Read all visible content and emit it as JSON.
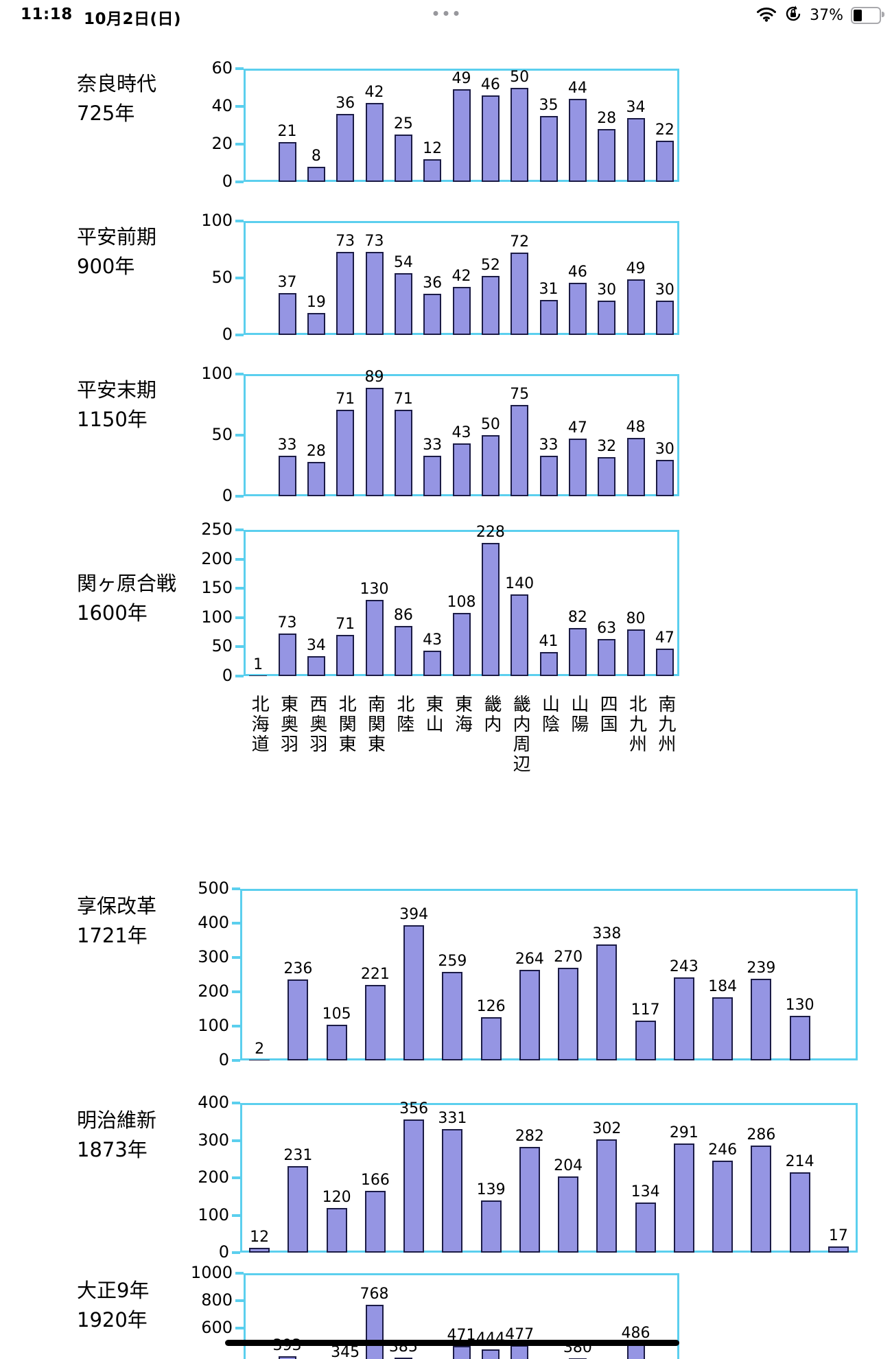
{
  "status_bar": {
    "time": "11:18",
    "date": "10月2日(日)",
    "battery_percent": "37%",
    "icons": [
      "wifi-icon",
      "rotation-lock-icon",
      "battery-icon",
      "multitask-handle-icon"
    ]
  },
  "regions": [
    "北海道",
    "東奥羽",
    "西奥羽",
    "北関東",
    "南関東",
    "北陸",
    "東山",
    "東海",
    "畿内",
    "畿内周辺",
    "山陰",
    "山陽",
    "四国",
    "北九州",
    "南九州"
  ],
  "chart_data": [
    {
      "type": "bar",
      "title": "奈良時代",
      "subtitle": "725年",
      "ylim": [
        0,
        60
      ],
      "yticks": [
        0,
        20,
        40,
        60
      ],
      "categories": [
        "北海道",
        "東奥羽",
        "西奥羽",
        "北関東",
        "南関東",
        "北陸",
        "東山",
        "東海",
        "畿内",
        "畿内周辺",
        "山陰",
        "山陽",
        "四国",
        "北九州",
        "南九州"
      ],
      "values": [
        null,
        21,
        8,
        36,
        42,
        25,
        12,
        49,
        46,
        50,
        35,
        44,
        28,
        34,
        22
      ]
    },
    {
      "type": "bar",
      "title": "平安前期",
      "subtitle": "900年",
      "ylim": [
        0,
        100
      ],
      "yticks": [
        0,
        50,
        100
      ],
      "categories": [
        "北海道",
        "東奥羽",
        "西奥羽",
        "北関東",
        "南関東",
        "北陸",
        "東山",
        "東海",
        "畿内",
        "畿内周辺",
        "山陰",
        "山陽",
        "四国",
        "北九州",
        "南九州"
      ],
      "values": [
        null,
        37,
        19,
        73,
        73,
        54,
        36,
        42,
        52,
        72,
        31,
        46,
        30,
        49,
        30
      ]
    },
    {
      "type": "bar",
      "title": "平安末期",
      "subtitle": "1150年",
      "ylim": [
        0,
        100
      ],
      "yticks": [
        0,
        50,
        100
      ],
      "categories": [
        "北海道",
        "東奥羽",
        "西奥羽",
        "北関東",
        "南関東",
        "北陸",
        "東山",
        "東海",
        "畿内",
        "畿内周辺",
        "山陰",
        "山陽",
        "四国",
        "北九州",
        "南九州"
      ],
      "values": [
        null,
        33,
        28,
        71,
        89,
        71,
        33,
        43,
        50,
        75,
        33,
        47,
        32,
        48,
        30
      ]
    },
    {
      "type": "bar",
      "title": "関ヶ原合戦",
      "subtitle": "1600年",
      "ylim": [
        0,
        250
      ],
      "yticks": [
        0,
        50,
        100,
        150,
        200,
        250
      ],
      "categories": [
        "北海道",
        "東奥羽",
        "西奥羽",
        "北関東",
        "南関東",
        "北陸",
        "東山",
        "東海",
        "畿内",
        "畿内周辺",
        "山陰",
        "山陽",
        "四国",
        "北九州",
        "南九州"
      ],
      "values": [
        1,
        73,
        34,
        71,
        130,
        86,
        43,
        108,
        228,
        140,
        41,
        82,
        63,
        80,
        47
      ],
      "x_axis_labels_shown": true
    },
    {
      "type": "bar",
      "title": "享保改革",
      "subtitle": "1721年",
      "ylim": [
        0,
        500
      ],
      "yticks": [
        0,
        100,
        200,
        300,
        400,
        500
      ],
      "categories": [
        "北海道",
        "東奥羽",
        "西奥羽",
        "北関東",
        "南関東",
        "北陸",
        "東山",
        "東海",
        "畿内",
        "畿内周辺",
        "山陰",
        "山陽",
        "四国",
        "北九州",
        "南九州",
        ""
      ],
      "values": [
        2,
        236,
        105,
        221,
        394,
        259,
        126,
        264,
        270,
        338,
        117,
        243,
        184,
        239,
        130,
        null
      ]
    },
    {
      "type": "bar",
      "title": "明治維新",
      "subtitle": "1873年",
      "ylim": [
        0,
        400
      ],
      "yticks": [
        0,
        100,
        200,
        300,
        400
      ],
      "categories": [
        "北海道",
        "東奥羽",
        "西奥羽",
        "北関東",
        "南関東",
        "北陸",
        "東山",
        "東海",
        "畿内",
        "畿内周辺",
        "山陰",
        "山陽",
        "四国",
        "北九州",
        "南九州",
        ""
      ],
      "values": [
        12,
        231,
        120,
        166,
        356,
        331,
        139,
        282,
        204,
        302,
        134,
        291,
        246,
        286,
        214,
        17
      ],
      "note": "16番目の棒(値17)はラベルの無い追加スロットに表示"
    },
    {
      "type": "bar",
      "title": "大正9年",
      "subtitle": "1920年",
      "ylim": [
        0,
        1000
      ],
      "yticks": [
        600,
        800,
        1000
      ],
      "categories": [
        "北海道",
        "東奥羽",
        "西奥羽",
        "北関東",
        "南関東",
        "北陸",
        "東山",
        "東海",
        "畿内",
        "畿内周辺",
        "山陰",
        "山陽",
        "四国",
        "北九州",
        "南九州"
      ],
      "values": [
        null,
        393,
        null,
        345,
        768,
        385,
        null,
        471,
        444,
        477,
        null,
        380,
        null,
        486,
        null
      ],
      "truncated": true,
      "note": "グラフ下部は画面下端で切れており、768以外の値ラベルは一部のみ見える",
      "annotation": "600目盛り付近にグラフを横切る太い黒の手書き線"
    }
  ]
}
